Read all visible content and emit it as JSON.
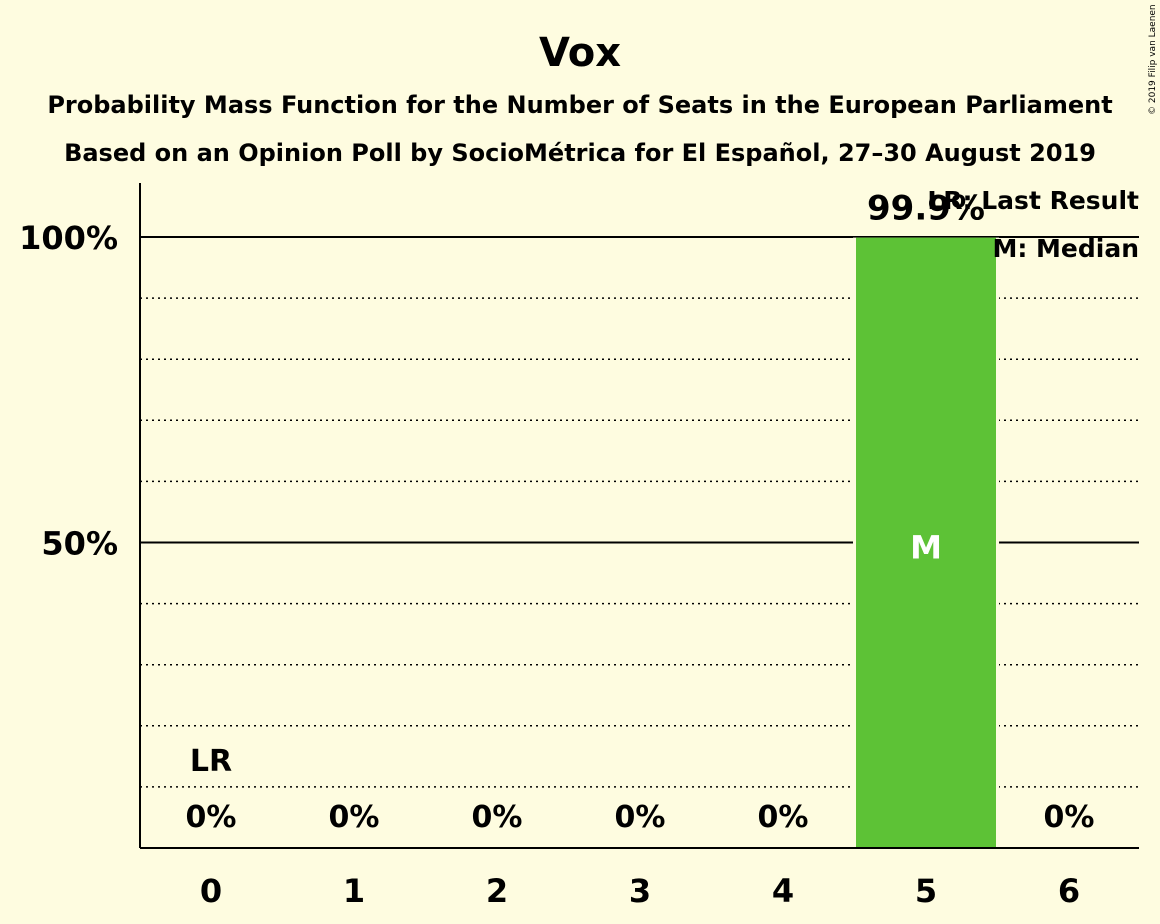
{
  "chart_data": {
    "type": "bar",
    "title": "Vox",
    "subtitle_1": "Probability Mass Function for the Number of Seats in the European Parliament",
    "subtitle_2": "Based on an Opinion Poll by SocioMétrica for El Español, 27–30 August 2019",
    "categories": [
      "0",
      "1",
      "2",
      "3",
      "4",
      "5",
      "6"
    ],
    "values": [
      0,
      0,
      0,
      0,
      0,
      99.9,
      0
    ],
    "data_labels": [
      "0%",
      "0%",
      "0%",
      "0%",
      "0%",
      "99.9%",
      "0%"
    ],
    "ylim": [
      0,
      110
    ],
    "y_ticks": [
      {
        "value": 50,
        "label": "50%"
      },
      {
        "value": 100,
        "label": "100%"
      }
    ],
    "minor_gridlines": [
      10,
      20,
      30,
      40,
      60,
      70,
      80,
      90
    ],
    "last_result": {
      "category": "0",
      "label": "LR"
    },
    "median": {
      "category": "5",
      "label": "M"
    },
    "legend": [
      "LR: Last Result",
      "M: Median"
    ],
    "legend_position": "top-right",
    "bar_color": "#5dc236",
    "copyright": "© 2019 Filip van Laenen"
  }
}
